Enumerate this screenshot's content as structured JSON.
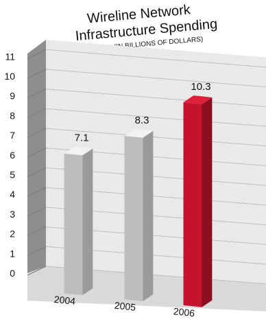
{
  "chart_data": {
    "type": "bar",
    "title": "Wireline Network Infrastructure Spending",
    "title_lines": [
      "Wireline Network",
      "Infrastructure Spending"
    ],
    "subtitle": "(IN BILLIONS OF DOLLARS)",
    "categories": [
      "2004",
      "2005",
      "2006"
    ],
    "values": [
      7.1,
      8.3,
      10.3
    ],
    "value_labels": [
      "7.1",
      "8.3",
      "10.3"
    ],
    "yticks": [
      "0",
      "1",
      "2",
      "3",
      "4",
      "5",
      "6",
      "7",
      "8",
      "9",
      "10",
      "11"
    ],
    "ylim": [
      0,
      11
    ],
    "grid": true,
    "xlabel": "",
    "ylabel": "",
    "colors": {
      "gray_bar_front": "#bdbdbd",
      "gray_bar_side": "#9a9a9a",
      "gray_bar_top": "#f2f2f2",
      "highlight_front": "#c4122f",
      "highlight_side": "#8b0f1f",
      "highlight_top": "#e0203a",
      "wall": "#e9e9e9",
      "left_wall": "#8e8e8e",
      "floor": "#d9d9d9"
    },
    "highlight_index": 2
  }
}
